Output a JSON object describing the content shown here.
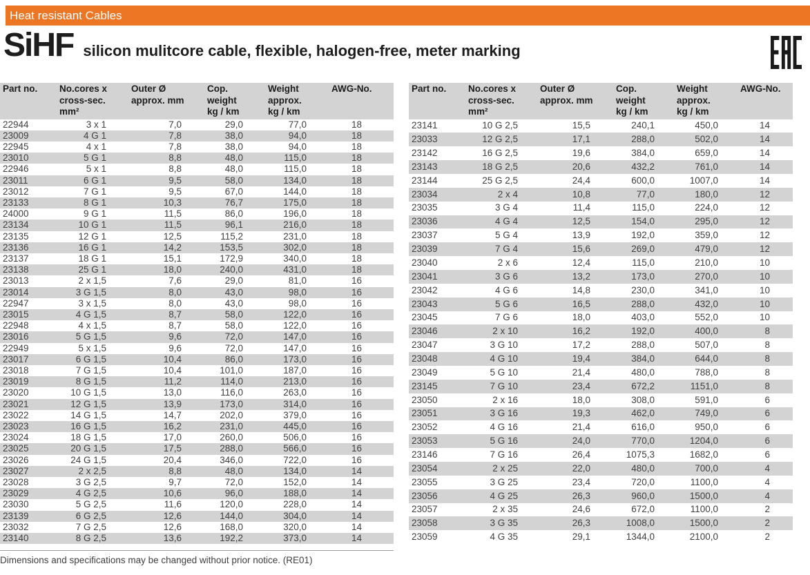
{
  "banner": {
    "label": "Heat resistant Cables"
  },
  "title": {
    "product": "SiHF",
    "description": "silicon mulitcore cable, flexible, halogen-free, meter marking"
  },
  "eac": {
    "label": "EAC"
  },
  "colors": {
    "accent": "#ec7623",
    "stripe": "#d3d3d3"
  },
  "columns": [
    {
      "id": "part",
      "lines": [
        "Part no."
      ]
    },
    {
      "id": "cores",
      "lines": [
        "No.cores x",
        "cross-sec.",
        "mm²"
      ]
    },
    {
      "id": "outer",
      "lines": [
        "Outer Ø",
        "approx. mm"
      ]
    },
    {
      "id": "cop",
      "lines": [
        "Cop.",
        "weight",
        "kg / km"
      ]
    },
    {
      "id": "weight",
      "lines": [
        "Weight",
        "approx.",
        "kg / km"
      ]
    },
    {
      "id": "awg",
      "lines": [
        "AWG-No."
      ]
    }
  ],
  "left_table": {
    "rows": [
      [
        "22944",
        "3 x 1",
        "7,0",
        "29,0",
        "77,0",
        "18"
      ],
      [
        "23009",
        "4 G 1",
        "7,8",
        "38,0",
        "94,0",
        "18"
      ],
      [
        "22945",
        "4 x 1",
        "7,8",
        "38,0",
        "94,0",
        "18"
      ],
      [
        "23010",
        "5 G 1",
        "8,8",
        "48,0",
        "115,0",
        "18"
      ],
      [
        "22946",
        "5 x 1",
        "8,8",
        "48,0",
        "115,0",
        "18"
      ],
      [
        "23011",
        "6 G 1",
        "9,5",
        "58,0",
        "134,0",
        "18"
      ],
      [
        "23012",
        "7 G 1",
        "9,5",
        "67,0",
        "144,0",
        "18"
      ],
      [
        "23133",
        "8 G 1",
        "10,3",
        "76,7",
        "175,0",
        "18"
      ],
      [
        "24000",
        "9 G 1",
        "11,5",
        "86,0",
        "196,0",
        "18"
      ],
      [
        "23134",
        "10 G 1",
        "11,5",
        "96,1",
        "216,0",
        "18"
      ],
      [
        "23135",
        "12 G 1",
        "12,5",
        "115,2",
        "231,0",
        "18"
      ],
      [
        "23136",
        "16 G 1",
        "14,2",
        "153,5",
        "302,0",
        "18"
      ],
      [
        "23137",
        "18 G 1",
        "15,1",
        "172,9",
        "340,0",
        "18"
      ],
      [
        "23138",
        "25 G 1",
        "18,0",
        "240,0",
        "431,0",
        "18"
      ],
      [
        "23013",
        "2 x 1,5",
        "7,6",
        "29,0",
        "81,0",
        "16"
      ],
      [
        "23014",
        "3 G 1,5",
        "8,0",
        "43,0",
        "98,0",
        "16"
      ],
      [
        "22947",
        "3 x 1,5",
        "8,0",
        "43,0",
        "98,0",
        "16"
      ],
      [
        "23015",
        "4 G 1,5",
        "8,7",
        "58,0",
        "122,0",
        "16"
      ],
      [
        "22948",
        "4 x 1,5",
        "8,7",
        "58,0",
        "122,0",
        "16"
      ],
      [
        "23016",
        "5 G 1,5",
        "9,6",
        "72,0",
        "147,0",
        "16"
      ],
      [
        "22949",
        "5 x 1,5",
        "9,6",
        "72,0",
        "147,0",
        "16"
      ],
      [
        "23017",
        "6 G 1,5",
        "10,4",
        "86,0",
        "173,0",
        "16"
      ],
      [
        "23018",
        "7 G 1,5",
        "10,4",
        "101,0",
        "187,0",
        "16"
      ],
      [
        "23019",
        "8 G 1,5",
        "11,2",
        "114,0",
        "213,0",
        "16"
      ],
      [
        "23020",
        "10 G 1,5",
        "13,0",
        "116,0",
        "263,0",
        "16"
      ],
      [
        "23021",
        "12 G 1,5",
        "13,9",
        "173,0",
        "314,0",
        "16"
      ],
      [
        "23022",
        "14 G 1,5",
        "14,7",
        "202,0",
        "379,0",
        "16"
      ],
      [
        "23023",
        "16 G 1,5",
        "16,2",
        "231,0",
        "445,0",
        "16"
      ],
      [
        "23024",
        "18 G 1,5",
        "17,0",
        "260,0",
        "506,0",
        "16"
      ],
      [
        "23025",
        "20 G 1,5",
        "17,5",
        "288,0",
        "566,0",
        "16"
      ],
      [
        "23026",
        "24 G 1,5",
        "20,4",
        "346,0",
        "722,0",
        "16"
      ],
      [
        "23027",
        "2 x 2,5",
        "8,8",
        "48,0",
        "134,0",
        "14"
      ],
      [
        "23028",
        "3 G 2,5",
        "9,7",
        "72,0",
        "152,0",
        "14"
      ],
      [
        "23029",
        "4 G 2,5",
        "10,6",
        "96,0",
        "188,0",
        "14"
      ],
      [
        "23030",
        "5 G 2,5",
        "11,6",
        "120,0",
        "228,0",
        "14"
      ],
      [
        "23139",
        "6 G 2,5",
        "12,6",
        "144,0",
        "304,0",
        "14"
      ],
      [
        "23032",
        "7 G 2,5",
        "12,6",
        "168,0",
        "320,0",
        "14"
      ],
      [
        "23140",
        "8 G 2,5",
        "13,6",
        "192,2",
        "373,0",
        "14"
      ]
    ]
  },
  "right_table": {
    "rows": [
      [
        "23141",
        "10 G 2,5",
        "15,5",
        "240,1",
        "450,0",
        "14"
      ],
      [
        "23033",
        "12 G 2,5",
        "17,1",
        "288,0",
        "502,0",
        "14"
      ],
      [
        "23142",
        "16 G 2,5",
        "19,6",
        "384,0",
        "659,0",
        "14"
      ],
      [
        "23143",
        "18 G 2,5",
        "20,6",
        "432,2",
        "761,0",
        "14"
      ],
      [
        "23144",
        "25 G 2,5",
        "24,4",
        "600,0",
        "1007,0",
        "14"
      ],
      [
        "23034",
        "2 x 4",
        "10,8",
        "77,0",
        "180,0",
        "12"
      ],
      [
        "23035",
        "3 G 4",
        "11,4",
        "115,0",
        "224,0",
        "12"
      ],
      [
        "23036",
        "4 G 4",
        "12,5",
        "154,0",
        "295,0",
        "12"
      ],
      [
        "23037",
        "5 G 4",
        "13,9",
        "192,0",
        "359,0",
        "12"
      ],
      [
        "23039",
        "7 G 4",
        "15,6",
        "269,0",
        "479,0",
        "12"
      ],
      [
        "23040",
        "2 x 6",
        "12,4",
        "115,0",
        "210,0",
        "10"
      ],
      [
        "23041",
        "3 G 6",
        "13,2",
        "173,0",
        "270,0",
        "10"
      ],
      [
        "23042",
        "4 G 6",
        "14,8",
        "230,0",
        "341,0",
        "10"
      ],
      [
        "23043",
        "5 G 6",
        "16,5",
        "288,0",
        "432,0",
        "10"
      ],
      [
        "23045",
        "7 G 6",
        "18,0",
        "403,0",
        "552,0",
        "10"
      ],
      [
        "23046",
        "2 x 10",
        "16,2",
        "192,0",
        "400,0",
        "8"
      ],
      [
        "23047",
        "3 G 10",
        "17,2",
        "288,0",
        "507,0",
        "8"
      ],
      [
        "23048",
        "4 G 10",
        "19,4",
        "384,0",
        "644,0",
        "8"
      ],
      [
        "23049",
        "5 G 10",
        "21,4",
        "480,0",
        "788,0",
        "8"
      ],
      [
        "23145",
        "7 G 10",
        "23,4",
        "672,2",
        "1151,0",
        "8"
      ],
      [
        "23050",
        "2 x 16",
        "18,0",
        "308,0",
        "591,0",
        "6"
      ],
      [
        "23051",
        "3 G 16",
        "19,3",
        "462,0",
        "749,0",
        "6"
      ],
      [
        "23052",
        "4 G 16",
        "21,4",
        "616,0",
        "950,0",
        "6"
      ],
      [
        "23053",
        "5 G 16",
        "24,0",
        "770,0",
        "1204,0",
        "6"
      ],
      [
        "23146",
        "7 G 16",
        "26,4",
        "1075,3",
        "1682,0",
        "6"
      ],
      [
        "23054",
        "2 x 25",
        "22,0",
        "480,0",
        "700,0",
        "4"
      ],
      [
        "23055",
        "3 G 25",
        "23,4",
        "720,0",
        "1100,0",
        "4"
      ],
      [
        "23056",
        "4 G 25",
        "26,3",
        "960,0",
        "1500,0",
        "4"
      ],
      [
        "23057",
        "2 x 35",
        "24,6",
        "672,0",
        "1100,0",
        "2"
      ],
      [
        "23058",
        "3 G 35",
        "26,3",
        "1008,0",
        "1500,0",
        "2"
      ],
      [
        "23059",
        "4 G 35",
        "29,1",
        "1344,0",
        "2100,0",
        "2"
      ]
    ]
  },
  "footer": {
    "note": "Dimensions and specifications may be changed without prior notice. (RE01)"
  }
}
